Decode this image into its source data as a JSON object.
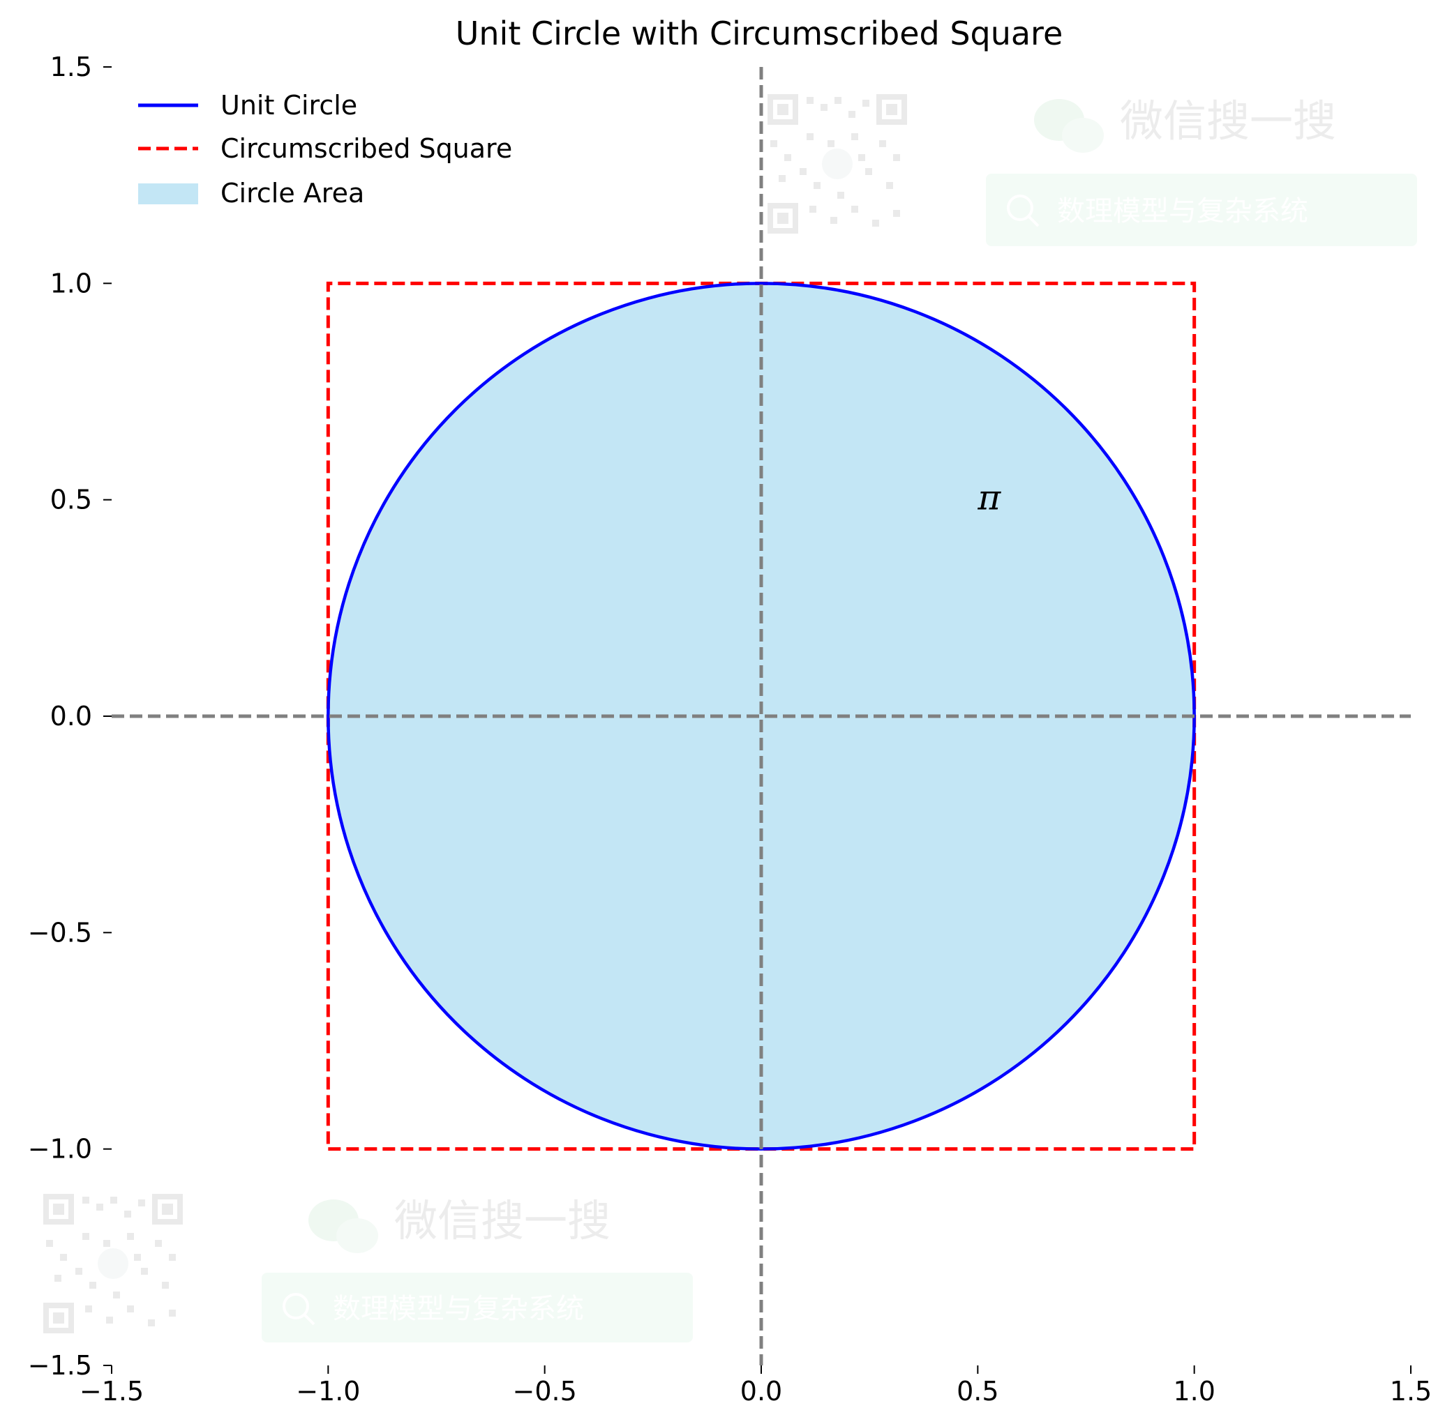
{
  "chart_data": {
    "type": "line",
    "title": "Unit Circle with Circumscribed Square",
    "xlabel": "",
    "ylabel": "",
    "xlim": [
      -1.5,
      1.5
    ],
    "ylim": [
      -1.5,
      1.5
    ],
    "xticks": [
      -1.5,
      -1.0,
      -0.5,
      0.0,
      0.5,
      1.0,
      1.5
    ],
    "yticks": [
      -1.5,
      -1.0,
      -0.5,
      0.0,
      0.5,
      1.0,
      1.5
    ],
    "xtick_labels": [
      "−1.5",
      "−1.0",
      "−0.5",
      "0.0",
      "0.5",
      "1.0",
      "1.5"
    ],
    "ytick_labels": [
      "−1.5",
      "−1.0",
      "−0.5",
      "0.0",
      "0.5",
      "1.0",
      "1.5"
    ],
    "grid": false,
    "legend_placement": "upper-left",
    "series": [
      {
        "name": "Unit Circle",
        "kind": "circle",
        "center": [
          0,
          0
        ],
        "radius": 1,
        "color": "#0000ff",
        "linestyle": "solid"
      },
      {
        "name": "Circumscribed Square",
        "kind": "polygon",
        "x": [
          -1,
          1,
          1,
          -1,
          -1
        ],
        "y": [
          -1,
          -1,
          1,
          1,
          -1
        ],
        "color": "#ff0000",
        "linestyle": "dashed"
      },
      {
        "name": "Circle Area",
        "kind": "fill",
        "center": [
          0,
          0
        ],
        "radius": 1,
        "color": "#87ceeb",
        "alpha": 0.5
      }
    ],
    "reference_lines": [
      {
        "orientation": "horizontal",
        "value": 0,
        "color": "#808080",
        "linestyle": "dashed"
      },
      {
        "orientation": "vertical",
        "value": 0,
        "color": "#808080",
        "linestyle": "dashed"
      }
    ],
    "annotations": [
      {
        "text": "π",
        "x": 0.5,
        "y": 0.5
      }
    ]
  },
  "watermark": {
    "wechat_label": "微信搜一搜",
    "search_label": "数理模型与复杂系统",
    "icons": [
      "qr-code-icon",
      "wechat-icon",
      "search-icon"
    ]
  }
}
